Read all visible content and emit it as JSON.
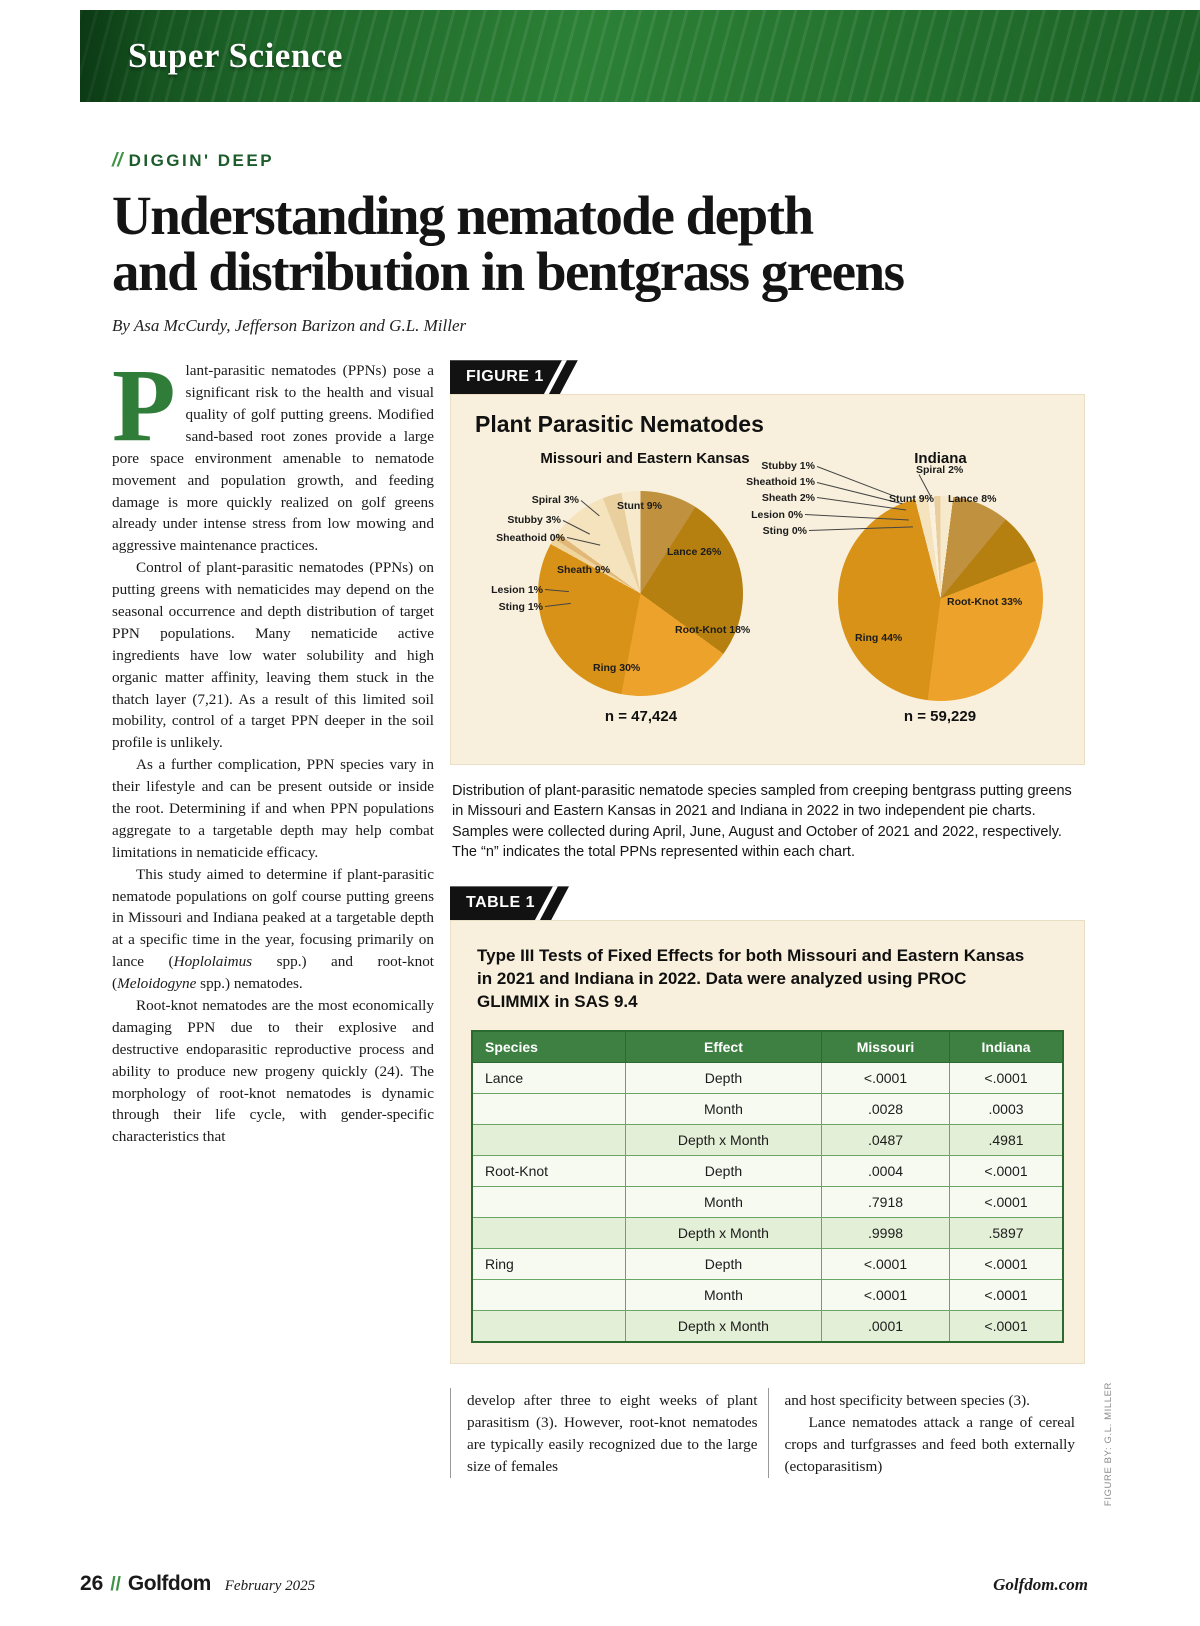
{
  "banner": {
    "title": "Super Science"
  },
  "kicker": {
    "slashes": "//",
    "label": "DIGGIN' DEEP"
  },
  "headline_line1": "Understanding nematode depth",
  "headline_line2": "and distribution in bentgrass greens",
  "byline": "By Asa McCurdy, Jefferson Barizon and G.L. Miller",
  "colors": {
    "banner_green": "#2c8036",
    "accent_green": "#1c5c2a",
    "panel_beige": "#f8f0dc",
    "table_header_green": "#3e8042",
    "tab_black": "#121212",
    "dropcap_green": "#2f7d38"
  },
  "article": {
    "dropcap": "P",
    "p1_rest": "lant-parasitic nematodes (PPNs) pose a significant risk to the health and visual quality of golf putting greens. Modified sand-based root zones provide a large pore space environment amenable to nematode movement and population growth, and feeding damage is more quickly realized on golf greens already under intense stress from low mowing and aggressive maintenance practices.",
    "p2": "Control of plant-parasitic nematodes (PPNs) on putting greens with nematicides may depend on the seasonal occurrence and depth distribution of target PPN populations. Many nematicide active ingredients have low water solubility and high organic matter affinity, leaving them stuck in the thatch layer (7,21). As a result of this limited soil mobility, control of a target PPN deeper in the soil profile is unlikely.",
    "p3": "As a further complication, PPN species vary in their lifestyle and can be present outside or inside the root. Determining if and when PPN populations aggregate to a targetable depth may help combat limitations in nematicide efficacy.",
    "p4_pre": "This study aimed to determine if plant-parasitic nematode populations on golf course putting greens in Missouri and Indiana peaked at a targetable depth at a specific time in the year, focusing primarily on lance (",
    "p4_italic1": "Hoplolaimus",
    "p4_mid": " spp.) and root-knot (",
    "p4_italic2": "Meloidogyne",
    "p4_end": " spp.) nematodes.",
    "p5": "Root-knot nematodes are the most economically damaging PPN due to their explosive and destructive endoparasitic reproductive process and ability to produce new progeny quickly (24). The morphology of root-knot nematodes is dynamic through their life cycle, with gender-specific characteristics that",
    "col2": "develop after three to eight weeks of plant parasitism (3). However, root-knot nematodes are typically easily recognized due to the large size of females",
    "col3_p1": "and host specificity between species (3).",
    "col3_p2": "Lance nematodes attack a range of cereal crops and turfgrasses and feed both externally (ectoparasitism)"
  },
  "figure": {
    "label": "FIGURE 1",
    "title": "Plant Parasitic Nematodes",
    "caption": "Distribution of plant-parasitic nematode species sampled from creeping bentgrass putting greens in Missouri and Eastern Kansas in 2021 and Indiana in 2022 in two independent pie charts. Samples were collected during April, June, August and October of 2021 and 2022, respectively. The “n” indicates the total PPNs represented within each chart.",
    "credit": "FIGURE BY: G.L. MILLER"
  },
  "chart_data": [
    {
      "type": "pie",
      "title": "Missouri and Eastern Kansas",
      "unit": "%",
      "n": 47424,
      "n_label": "n = 47,424",
      "slices": [
        {
          "name": "Stunt",
          "value": 9,
          "color": "#c0913f"
        },
        {
          "name": "Lance",
          "value": 26,
          "color": "#b5800f"
        },
        {
          "name": "Root-Knot",
          "value": 18,
          "color": "#eda32b"
        },
        {
          "name": "Ring",
          "value": 30,
          "color": "#d89217"
        },
        {
          "name": "Sting",
          "value": 1,
          "color": "#efd49c"
        },
        {
          "name": "Lesion",
          "value": 1,
          "color": "#e2b878"
        },
        {
          "name": "Sheath",
          "value": 9,
          "color": "#f4e3bd"
        },
        {
          "name": "Sheathoid",
          "value": 0,
          "color": "#faf0dd"
        },
        {
          "name": "Stubby",
          "value": 3,
          "color": "#eacf9e"
        },
        {
          "name": "Spiral",
          "value": 3,
          "color": "#f6e9cc"
        }
      ],
      "labels": [
        "Stunt 9%",
        "Lance 26%",
        "Root-Knot 18%",
        "Ring 30%",
        "Sting 1%",
        "Lesion 1%",
        "Sheath 9%",
        "Sheathoid 0%",
        "Stubby 3%",
        "Spiral 3%"
      ]
    },
    {
      "type": "pie",
      "title": "Indiana",
      "unit": "%",
      "n": 59229,
      "n_label": "n = 59,229",
      "slices": [
        {
          "name": "Spiral",
          "value": 2,
          "color": "#f6e9cc"
        },
        {
          "name": "Stunt",
          "value": 9,
          "color": "#c0913f"
        },
        {
          "name": "Lance",
          "value": 8,
          "color": "#b5800f"
        },
        {
          "name": "Root-Knot",
          "value": 33,
          "color": "#eda32b"
        },
        {
          "name": "Ring",
          "value": 44,
          "color": "#d89217"
        },
        {
          "name": "Sting",
          "value": 0,
          "color": "#efd49c"
        },
        {
          "name": "Lesion",
          "value": 0,
          "color": "#e2b878"
        },
        {
          "name": "Sheath",
          "value": 2,
          "color": "#f4e3bd"
        },
        {
          "name": "Sheathoid",
          "value": 1,
          "color": "#faf0dd"
        },
        {
          "name": "Stubby",
          "value": 1,
          "color": "#eacf9e"
        }
      ],
      "labels": [
        "Spiral 2%",
        "Stunt 9%",
        "Lance 8%",
        "Root-Knot 33%",
        "Ring 44%",
        "Sting 0%",
        "Lesion 0%",
        "Sheath 2%",
        "Sheathoid 1%",
        "Stubby 1%"
      ]
    }
  ],
  "table": {
    "label": "TABLE 1",
    "title": "Type III Tests of Fixed Effects for both Missouri and Eastern Kansas in 2021 and Indiana in 2022. Data were analyzed using PROC GLIMMIX in SAS 9.4",
    "headers": [
      "Species",
      "Effect",
      "Missouri",
      "Indiana"
    ],
    "rows": [
      [
        "Lance",
        "Depth",
        "<.0001",
        "<.0001"
      ],
      [
        "",
        "Month",
        ".0028",
        ".0003"
      ],
      [
        "",
        "Depth x Month",
        ".0487",
        ".4981"
      ],
      [
        "Root-Knot",
        "Depth",
        ".0004",
        "<.0001"
      ],
      [
        "",
        "Month",
        ".7918",
        "<.0001"
      ],
      [
        "",
        "Depth x Month",
        ".9998",
        ".5897"
      ],
      [
        "Ring",
        "Depth",
        "<.0001",
        "<.0001"
      ],
      [
        "",
        "Month",
        "<.0001",
        "<.0001"
      ],
      [
        "",
        "Depth x Month",
        ".0001",
        "<.0001"
      ]
    ]
  },
  "footer": {
    "page": "26",
    "slashes": "//",
    "brand": "Golfdom",
    "date": "February 2025",
    "site": "Golfdom.com"
  }
}
